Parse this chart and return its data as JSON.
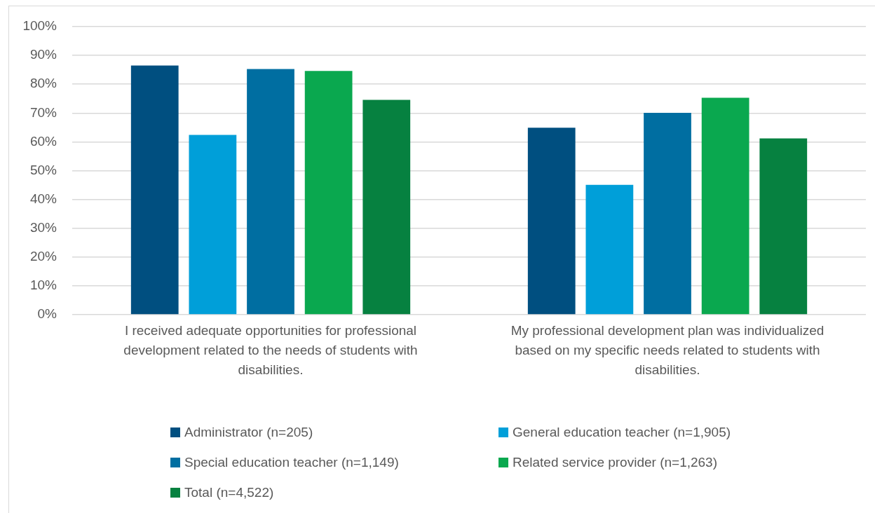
{
  "chart_data": {
    "type": "bar",
    "categories": [
      "I received adequate opportunities for professional development related to the needs of students with disabilities.",
      "My professional development plan was individualized based on my specific needs related to students with disabilities."
    ],
    "series": [
      {
        "name": "Administrator (n=205)",
        "color": "#004f80",
        "values": [
          86.5,
          64.9
        ]
      },
      {
        "name": "General education teacher (n=1,905)",
        "color": "#009fd9",
        "values": [
          62.4,
          45.1
        ]
      },
      {
        "name": "Special education teacher (n=1,149)",
        "color": "#006ea1",
        "values": [
          85.3,
          70.1
        ]
      },
      {
        "name": "Related service provider (n=1,263)",
        "color": "#0aa84f",
        "values": [
          84.6,
          75.3
        ]
      },
      {
        "name": "Total (n=4,522)",
        "color": "#068140",
        "values": [
          74.6,
          61.2
        ]
      }
    ],
    "ylim": [
      0,
      100
    ],
    "yticks": [
      {
        "value": 0,
        "label": "0%"
      },
      {
        "value": 10,
        "label": "10%"
      },
      {
        "value": 20,
        "label": "20%"
      },
      {
        "value": 30,
        "label": "30%"
      },
      {
        "value": 40,
        "label": "40%"
      },
      {
        "value": 50,
        "label": "50%"
      },
      {
        "value": 60,
        "label": "60%"
      },
      {
        "value": 70,
        "label": "70%"
      },
      {
        "value": 80,
        "label": "80%"
      },
      {
        "value": 90,
        "label": "90%"
      },
      {
        "value": 100,
        "label": "100%"
      }
    ],
    "grid": "y",
    "legend": "bottom"
  }
}
